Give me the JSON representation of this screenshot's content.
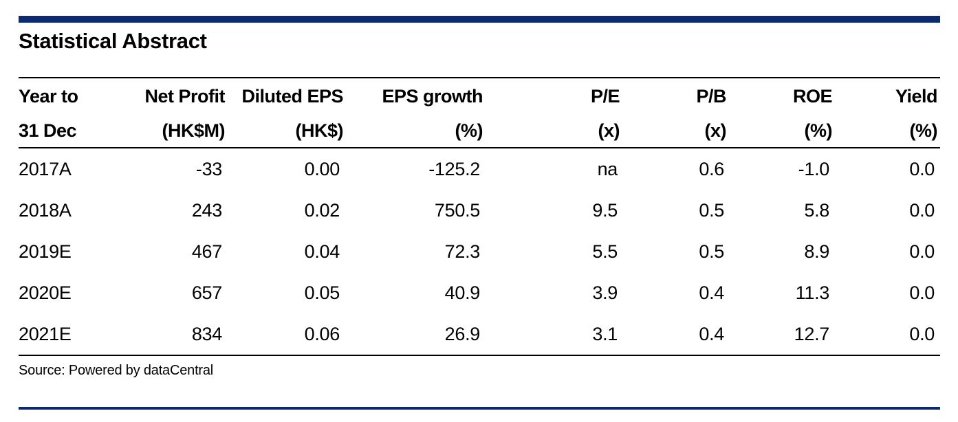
{
  "title": "Statistical Abstract",
  "columns": [
    {
      "line1": "Year to",
      "line2": "31 Dec"
    },
    {
      "line1": "Net Profit",
      "line2": "(HK$M)"
    },
    {
      "line1": "Diluted EPS",
      "line2": "(HK$)"
    },
    {
      "line1": "EPS growth",
      "line2": "(%)"
    },
    {
      "line1": "P/E",
      "line2": "(x)"
    },
    {
      "line1": "P/B",
      "line2": "(x)"
    },
    {
      "line1": "ROE",
      "line2": "(%)"
    },
    {
      "line1": "Yield",
      "line2": "(%)"
    }
  ],
  "rows": [
    [
      "2017A",
      "-33",
      "0.00",
      "-125.2",
      "na",
      "0.6",
      "-1.0",
      "0.0"
    ],
    [
      "2018A",
      "243",
      "0.02",
      "750.5",
      "9.5",
      "0.5",
      "5.8",
      "0.0"
    ],
    [
      "2019E",
      "467",
      "0.04",
      "72.3",
      "5.5",
      "0.5",
      "8.9",
      "0.0"
    ],
    [
      "2020E",
      "657",
      "0.05",
      "40.9",
      "3.9",
      "0.4",
      "11.3",
      "0.0"
    ],
    [
      "2021E",
      "834",
      "0.06",
      "26.9",
      "3.1",
      "0.4",
      "12.7",
      "0.0"
    ]
  ],
  "source": "Source: Powered by dataCentral",
  "colors": {
    "accent_bar": "#0b2a6f",
    "text": "#000000"
  }
}
